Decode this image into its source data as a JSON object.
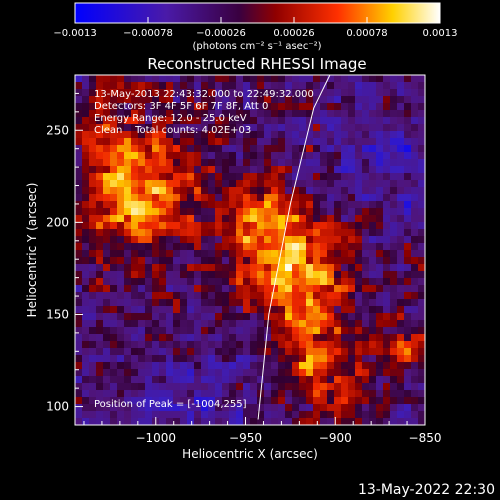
{
  "colorbar": {
    "ticks": [
      "-0.0013",
      "-0.00078",
      "-0.00026",
      "0.00026",
      "0.00078",
      "0.0013"
    ],
    "unit_label": "(photons cm⁻² s⁻¹ asec⁻²)"
  },
  "annotations": {
    "time_range": "13-May-2013 22:43:32.000 to 22:49:32.000",
    "detectors": "Detectors: 3F 4F 5F 6F 7F 8F, Att 0",
    "energy": "Energy Range: 12.0 - 25.0 keV",
    "clean": "Clean    Total counts: 4.02E+03",
    "peak": "Position of Peak = [-1004,255]"
  },
  "footer_timestamp": "13-May-2022 22:30",
  "chart_data": {
    "type": "heatmap",
    "title": "Reconstructed RHESSI Image",
    "xlabel": "Heliocentric X (arcsec)",
    "ylabel": "Heliocentric Y (arcsec)",
    "xlim": [
      -1045,
      -850
    ],
    "ylim": [
      90,
      280
    ],
    "x_ticks": [
      -1000,
      -950,
      -900,
      -850
    ],
    "x_tick_labels": [
      "−1000",
      "−950",
      "−900",
      "−850"
    ],
    "y_ticks": [
      100,
      150,
      200,
      250
    ],
    "y_tick_labels": [
      "100",
      "150",
      "200",
      "250"
    ],
    "colormap": "blue-purple-red-yellow-white",
    "color_range": [
      -0.0013,
      0.0013
    ],
    "limb_curve": {
      "x": [
        -943,
        -937,
        -925,
        -912,
        -903
      ],
      "y": [
        93,
        150,
        210,
        262,
        280
      ]
    }
  }
}
